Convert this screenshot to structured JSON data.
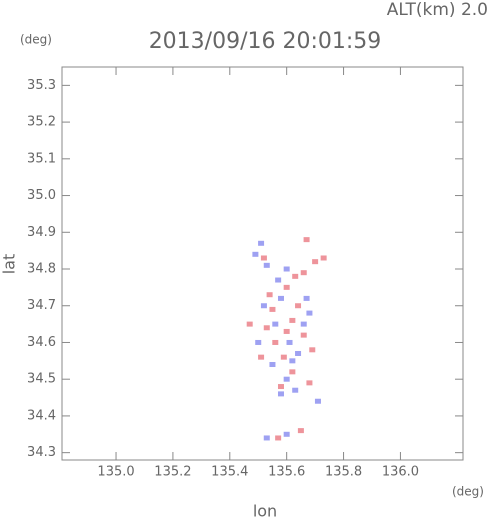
{
  "chart_data": {
    "type": "scatter",
    "title": "2013/09/16 20:01:59",
    "subtitle": "ALT(km)  2.0",
    "x_label": "lon",
    "y_label": "lat",
    "x_unit": "(deg)",
    "y_unit": "(deg)",
    "xlim": [
      134.81,
      136.22
    ],
    "ylim": [
      34.28,
      35.35
    ],
    "xticks": [
      {
        "value": 135,
        "label": "135.0"
      },
      135.2,
      135.4,
      135.6,
      135.8,
      {
        "value": 136,
        "label": "136.0"
      }
    ],
    "yticks": [
      34.3,
      34.4,
      34.5,
      34.6,
      34.7,
      34.8,
      34.9,
      {
        "value": 35,
        "label": "35.0"
      },
      35.1,
      35.2,
      35.3
    ],
    "series": [
      {
        "color": "#e8707a",
        "x": [
          135.52,
          135.66,
          135.7,
          135.73,
          135.67,
          135.55,
          135.53,
          135.56,
          135.6,
          135.62,
          135.66,
          135.59,
          135.62,
          135.58,
          135.68,
          135.6,
          135.54,
          135.47,
          135.51,
          135.64,
          135.57,
          135.65,
          135.69,
          135.63
        ],
        "y": [
          34.83,
          34.79,
          34.82,
          34.83,
          34.88,
          34.69,
          34.64,
          34.6,
          34.63,
          34.66,
          34.62,
          34.56,
          34.52,
          34.48,
          34.49,
          34.75,
          34.73,
          34.65,
          34.56,
          34.7,
          34.34,
          34.36,
          34.58,
          34.78
        ]
      },
      {
        "color": "#7d82ee",
        "x": [
          135.49,
          135.51,
          135.53,
          135.6,
          135.58,
          135.52,
          135.56,
          135.61,
          135.66,
          135.68,
          135.55,
          135.6,
          135.63,
          135.58,
          135.71,
          135.5,
          135.67,
          135.62,
          135.53,
          135.6,
          135.64,
          135.57
        ],
        "y": [
          34.84,
          34.87,
          34.81,
          34.8,
          34.72,
          34.7,
          34.65,
          34.6,
          34.65,
          34.68,
          34.54,
          34.5,
          34.47,
          34.46,
          34.44,
          34.6,
          34.72,
          34.55,
          34.34,
          34.35,
          34.57,
          34.77
        ]
      }
    ]
  }
}
